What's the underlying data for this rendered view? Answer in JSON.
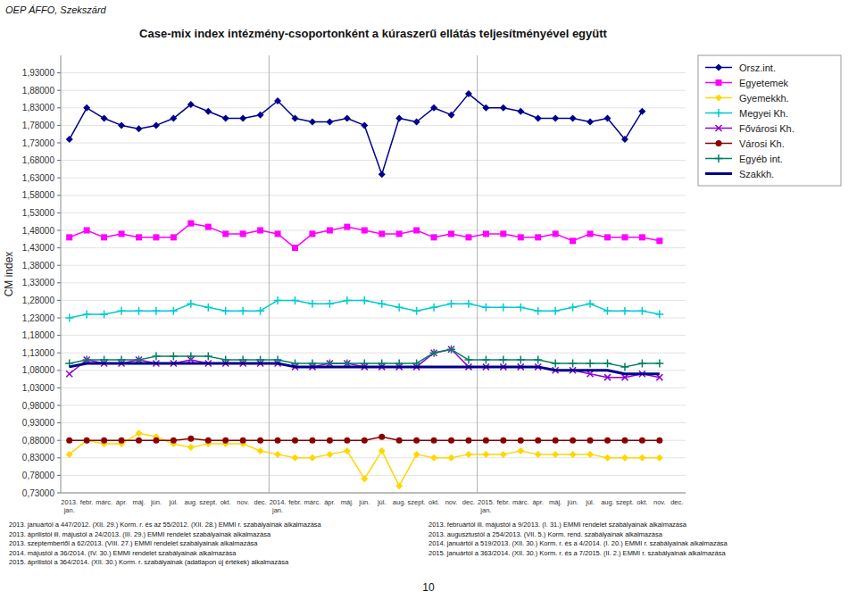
{
  "chart_data": {
    "type": "line",
    "title": "Case-mix index intézmény-csoportonként a kúraszerű ellátás teljesítményével együtt",
    "y_label": "CM index",
    "annotations": [
      "OEP ÁFFO, Szekszárd",
      "2013. januártól a 447/2012. (XII. 29.) Korm. r. és az 55/2012. (XII. 28.) EMMI r. szabályainak alkalmazása\n2013. áprilistól ill. májustól a 24/2013. (III. 29.) EMMI rendelet szabályainak alkalmazása\n2013. szeptembertől a 62/2013. (VIII. 27.) EMMI rendelet szabályainak alkalmazása\n2014. májustól a 36/2014. (IV. 30.) EMMI rendelet szabályainak alkalmazása\n2015. áprilistól a 364/2014. (XII. 30.) Korm. r. szabályainak (adatlapon új értékek) alkalmazása",
      "2013. februártól ill. májustól a 9/2013. (I. 31.) EMMI rendelet szabályainak alkalmazása\n2013. augusztustól a 254/2013. (VII. 5.) Korm. rend. szabályainak alkalmazása\n2014. januártól a 519/2013. (XII. 30.) Korm. r. és a 4/2014. (I. 20.) EMMI r. szabályainak alkalmazása\n2015. januártól a 363/2014. (XII. 30.) Korm. r. és a 7/2015. (II. 2.) EMMI r. szabályainak alkalmazása",
      "10"
    ],
    "categories": [
      "2013.\njan.",
      "febr.",
      "márc.",
      "ápr.",
      "máj.",
      "jún.",
      "júl.",
      "aug.",
      "szept.",
      "okt.",
      "nov.",
      "dec.",
      "2014.\njan.",
      "febr.",
      "márc.",
      "ápr.",
      "máj.",
      "jún.",
      "júl.",
      "aug.",
      "szept.",
      "okt.",
      "nov.",
      "dec.",
      "2015.\njan.",
      "febr.",
      "márc.",
      "ápr.",
      "máj.",
      "jún.",
      "júl.",
      "aug.",
      "szept.",
      "okt.",
      "nov.",
      "dec."
    ],
    "ylim": [
      0.73,
      1.98
    ],
    "yticks": [
      {
        "value": 0.73,
        "label": "0,73000"
      },
      {
        "value": 0.78,
        "label": "0,78000"
      },
      {
        "value": 0.83,
        "label": "0,83000"
      },
      {
        "value": 0.88,
        "label": "0,88000"
      },
      {
        "value": 0.93,
        "label": "0,93000"
      },
      {
        "value": 0.98,
        "label": "0,98000"
      },
      {
        "value": 1.03,
        "label": "1,03000"
      },
      {
        "value": 1.08,
        "label": "1,08000"
      },
      {
        "value": 1.13,
        "label": "1,13000"
      },
      {
        "value": 1.18,
        "label": "1,18000"
      },
      {
        "value": 1.23,
        "label": "1,23000"
      },
      {
        "value": 1.28,
        "label": "1,28000"
      },
      {
        "value": 1.33,
        "label": "1,33000"
      },
      {
        "value": 1.38,
        "label": "1,38000"
      },
      {
        "value": 1.43,
        "label": "1,43000"
      },
      {
        "value": 1.48,
        "label": "1,48000"
      },
      {
        "value": 1.53,
        "label": "1,53000"
      },
      {
        "value": 1.58,
        "label": "1,58000"
      },
      {
        "value": 1.63,
        "label": "1,63000"
      },
      {
        "value": 1.68,
        "label": "1,68000"
      },
      {
        "value": 1.73,
        "label": "1,73000"
      },
      {
        "value": 1.78,
        "label": "1,78000"
      },
      {
        "value": 1.83,
        "label": "1,83000"
      },
      {
        "value": 1.88,
        "label": "1,88000"
      },
      {
        "value": 1.93,
        "label": "1,93000"
      }
    ],
    "grid": true,
    "legend": "right",
    "series": [
      {
        "name": "Orsz.int.",
        "color": "#00008B",
        "marker": "diamond",
        "line_style": "solid",
        "values": [
          1.74,
          1.83,
          1.8,
          1.78,
          1.77,
          1.78,
          1.8,
          1.84,
          1.82,
          1.8,
          1.8,
          1.81,
          1.85,
          1.8,
          1.79,
          1.79,
          1.8,
          1.78,
          1.64,
          1.8,
          1.79,
          1.83,
          1.81,
          1.87,
          1.83,
          1.83,
          1.82,
          1.8,
          1.8,
          1.8,
          1.79,
          1.8,
          1.74,
          1.82,
          null,
          null
        ]
      },
      {
        "name": "Egyetemek",
        "color": "#FF00FF",
        "marker": "square",
        "line_style": "solid",
        "values": [
          1.46,
          1.48,
          1.46,
          1.47,
          1.46,
          1.46,
          1.46,
          1.5,
          1.49,
          1.47,
          1.47,
          1.48,
          1.47,
          1.43,
          1.47,
          1.48,
          1.49,
          1.48,
          1.47,
          1.47,
          1.48,
          1.46,
          1.47,
          1.46,
          1.47,
          1.47,
          1.46,
          1.46,
          1.47,
          1.45,
          1.47,
          1.46,
          1.46,
          1.46,
          1.45,
          null
        ]
      },
      {
        "name": "Gyemekkh.",
        "color": "#FFD700",
        "marker": "diamond",
        "line_style": "solid",
        "values": [
          0.84,
          0.88,
          0.87,
          0.87,
          0.9,
          0.89,
          0.87,
          0.86,
          0.87,
          0.87,
          0.87,
          0.85,
          0.84,
          0.83,
          0.83,
          0.84,
          0.85,
          0.77,
          0.85,
          0.75,
          0.84,
          0.83,
          0.83,
          0.84,
          0.84,
          0.84,
          0.85,
          0.84,
          0.84,
          0.84,
          0.84,
          0.83,
          0.83,
          0.83,
          0.83,
          null
        ]
      },
      {
        "name": "Megyei Kh.",
        "color": "#00CCCC",
        "marker": "plus",
        "line_style": "solid",
        "values": [
          1.23,
          1.24,
          1.24,
          1.25,
          1.25,
          1.25,
          1.25,
          1.27,
          1.26,
          1.25,
          1.25,
          1.25,
          1.28,
          1.28,
          1.27,
          1.27,
          1.28,
          1.28,
          1.27,
          1.26,
          1.25,
          1.26,
          1.27,
          1.27,
          1.26,
          1.26,
          1.26,
          1.25,
          1.25,
          1.26,
          1.27,
          1.25,
          1.25,
          1.25,
          1.24,
          null
        ]
      },
      {
        "name": "Fővárosi Kh.",
        "color": "#9400D3",
        "marker": "x",
        "line_style": "solid",
        "values": [
          1.07,
          1.11,
          1.1,
          1.1,
          1.11,
          1.1,
          1.1,
          1.11,
          1.1,
          1.1,
          1.1,
          1.1,
          1.1,
          1.09,
          1.09,
          1.1,
          1.1,
          1.09,
          1.09,
          1.09,
          1.09,
          1.13,
          1.14,
          1.09,
          1.09,
          1.09,
          1.09,
          1.09,
          1.08,
          1.08,
          1.07,
          1.06,
          1.06,
          1.07,
          1.06,
          null
        ]
      },
      {
        "name": "Városi Kh.",
        "color": "#8B0000",
        "marker": "circle",
        "line_style": "solid",
        "values": [
          0.88,
          0.88,
          0.88,
          0.88,
          0.88,
          0.88,
          0.88,
          0.885,
          0.88,
          0.88,
          0.88,
          0.88,
          0.88,
          0.88,
          0.88,
          0.88,
          0.88,
          0.88,
          0.89,
          0.88,
          0.88,
          0.88,
          0.88,
          0.88,
          0.88,
          0.88,
          0.88,
          0.88,
          0.88,
          0.88,
          0.88,
          0.88,
          0.88,
          0.88,
          0.88,
          null
        ]
      },
      {
        "name": "Egyéb int.",
        "color": "#008060",
        "marker": "plus",
        "line_style": "solid",
        "values": [
          1.1,
          1.11,
          1.11,
          1.11,
          1.11,
          1.12,
          1.12,
          1.12,
          1.12,
          1.11,
          1.11,
          1.11,
          1.11,
          1.1,
          1.1,
          1.1,
          1.1,
          1.1,
          1.1,
          1.1,
          1.1,
          1.13,
          1.14,
          1.11,
          1.11,
          1.11,
          1.11,
          1.11,
          1.1,
          1.1,
          1.1,
          1.1,
          1.09,
          1.1,
          1.1,
          null
        ]
      },
      {
        "name": "Szakkh.",
        "color": "#00008B",
        "marker": "none",
        "line_style": "solid",
        "values": [
          1.09,
          1.1,
          1.1,
          1.1,
          1.1,
          1.1,
          1.1,
          1.1,
          1.1,
          1.1,
          1.1,
          1.1,
          1.1,
          1.09,
          1.09,
          1.09,
          1.09,
          1.09,
          1.09,
          1.09,
          1.09,
          1.09,
          1.09,
          1.09,
          1.09,
          1.09,
          1.09,
          1.09,
          1.08,
          1.08,
          1.08,
          1.08,
          1.07,
          1.07,
          1.07,
          null
        ]
      }
    ]
  }
}
